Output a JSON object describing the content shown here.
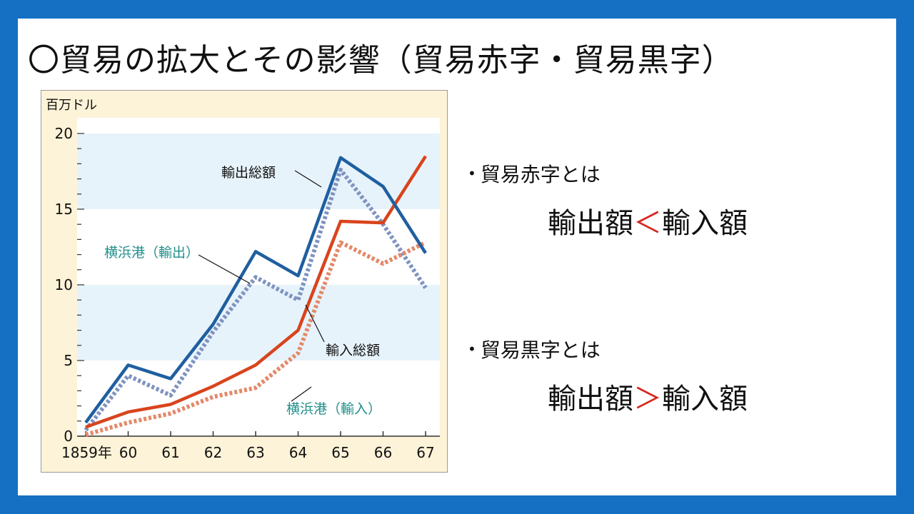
{
  "title": "〇貿易の拡大とその影響（貿易赤字・貿易黒字）",
  "definitions": [
    {
      "bullet": "•",
      "term": "貿易赤字とは",
      "lhs": "輸出額",
      "op": "＜",
      "rhs": "輸入額"
    },
    {
      "bullet": "•",
      "term": "貿易黒字とは",
      "lhs": "輸出額",
      "op": "＞",
      "rhs": "輸入額"
    }
  ],
  "colors": {
    "export_total": "#1f5fa0",
    "yokohama_export": "#7f93c0",
    "import_total": "#d9441c",
    "yokohama_import": "#e3896a",
    "band": "#e7f3fb",
    "label_teal": "#1f8f8a",
    "background": "#1570c4"
  },
  "chart_data": {
    "type": "line",
    "ylabel": "百万ドル",
    "ylim": [
      0,
      20
    ],
    "yticks": [
      "0",
      "5",
      "10",
      "15",
      "20"
    ],
    "x": [
      "1859年",
      "60",
      "61",
      "62",
      "63",
      "64",
      "65",
      "66",
      "67"
    ],
    "series": [
      {
        "name": "輸出総額",
        "style": "solid",
        "color": "#1f5fa0",
        "values": [
          0.9,
          4.7,
          3.8,
          7.4,
          12.2,
          10.6,
          18.4,
          16.5,
          12.1
        ]
      },
      {
        "name": "横浜港（輸出）",
        "style": "dotted",
        "color": "#7f93c0",
        "values": [
          0.4,
          4.0,
          2.7,
          6.9,
          10.5,
          9.0,
          17.6,
          14.0,
          9.8
        ]
      },
      {
        "name": "輸入総額",
        "style": "solid",
        "color": "#d9441c",
        "values": [
          0.6,
          1.6,
          2.1,
          3.3,
          4.7,
          7.0,
          14.2,
          14.1,
          18.5
        ]
      },
      {
        "name": "横浜港（輸入）",
        "style": "dotted",
        "color": "#e3896a",
        "values": [
          0.1,
          0.9,
          1.5,
          2.6,
          3.2,
          5.5,
          12.8,
          11.4,
          12.8
        ]
      }
    ]
  }
}
